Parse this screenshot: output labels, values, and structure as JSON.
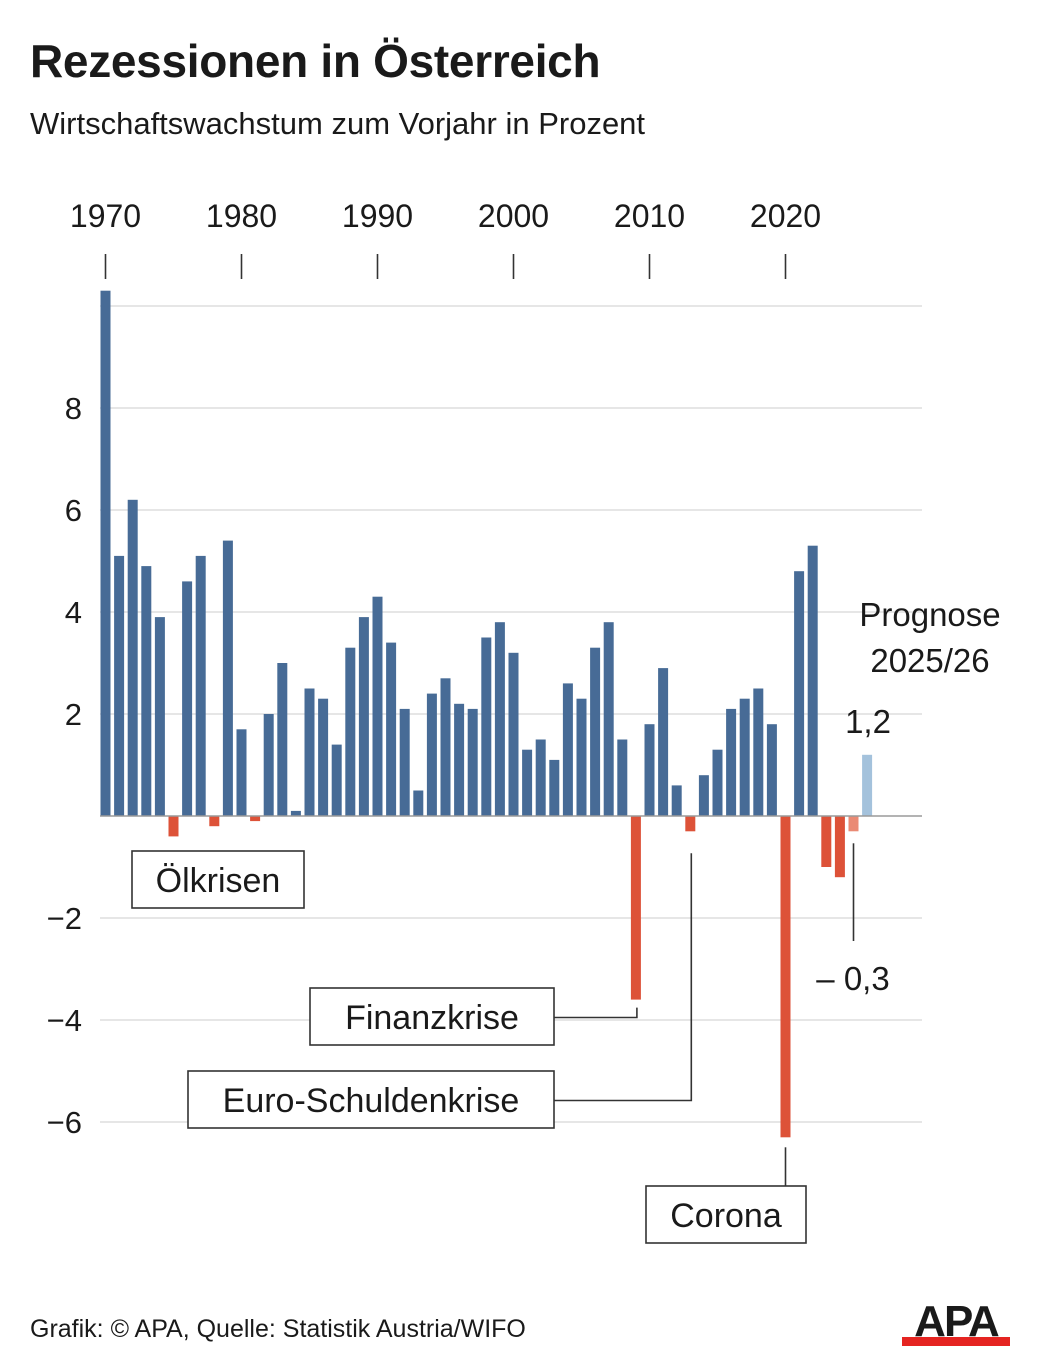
{
  "header": {
    "title": "Rezessionen in Österreich",
    "subtitle": "Wirtschaftswachstum zum Vorjahr in Prozent"
  },
  "chart_data": {
    "type": "bar",
    "title": "Rezessionen in Österreich",
    "subtitle": "Wirtschaftswachstum zum Vorjahr in Prozent",
    "ylim": [
      -7,
      10
    ],
    "grid": true,
    "x_tick_labels": [
      "1970",
      "1980",
      "1990",
      "2000",
      "2010",
      "2020"
    ],
    "x_ticks": [
      1970,
      1980,
      1990,
      2000,
      2010,
      2020
    ],
    "y_tick_labels": [
      "8",
      "6",
      "4",
      "2",
      "−2",
      "−4",
      "−6"
    ],
    "y_ticks": [
      8,
      6,
      4,
      2,
      -2,
      -4,
      -6
    ],
    "x": [
      1970,
      1971,
      1972,
      1973,
      1974,
      1975,
      1976,
      1977,
      1978,
      1979,
      1980,
      1981,
      1982,
      1983,
      1984,
      1985,
      1986,
      1987,
      1988,
      1989,
      1990,
      1991,
      1992,
      1993,
      1994,
      1995,
      1996,
      1997,
      1998,
      1999,
      2000,
      2001,
      2002,
      2003,
      2004,
      2005,
      2006,
      2007,
      2008,
      2009,
      2010,
      2011,
      2012,
      2013,
      2014,
      2015,
      2016,
      2017,
      2018,
      2019,
      2020,
      2021,
      2022,
      2023,
      2024,
      2025,
      2026
    ],
    "values": [
      10.3,
      5.1,
      6.2,
      4.9,
      3.9,
      -0.4,
      4.6,
      5.1,
      -0.2,
      5.4,
      1.7,
      -0.1,
      2.0,
      3.0,
      0.1,
      2.5,
      2.3,
      1.4,
      3.3,
      3.9,
      4.3,
      3.4,
      2.1,
      0.5,
      2.4,
      2.7,
      2.2,
      2.1,
      3.5,
      3.8,
      3.2,
      1.3,
      1.5,
      1.1,
      2.6,
      2.3,
      3.3,
      3.8,
      1.5,
      -3.6,
      1.8,
      2.9,
      0.6,
      -0.3,
      0.8,
      1.3,
      2.1,
      2.3,
      2.5,
      1.8,
      -6.3,
      4.8,
      5.3,
      -1.0,
      -1.2,
      -0.3,
      1.2
    ],
    "forecast_years": [
      2025,
      2026
    ],
    "colors": {
      "positive": "#476b96",
      "negative": "#dd5238",
      "forecast_positive": "#a4c2dc",
      "forecast_negative": "#ea8a74",
      "grid": "#dedede",
      "axis": "#9a9a9a"
    },
    "annotations": [
      {
        "label": "Ölkrisen",
        "target_year": 1975
      },
      {
        "label": "Finanzkrise",
        "target_year": 2009
      },
      {
        "label": "Euro-Schuldenkrise",
        "target_year": 2013
      },
      {
        "label": "Corona",
        "target_year": 2020
      }
    ],
    "forecast_label_line1": "Prognose",
    "forecast_label_line2": "2025/26",
    "forecast_value_labels": [
      {
        "text": "1,2",
        "year": 2026
      },
      {
        "text": "– 0,3",
        "year": 2025
      }
    ]
  },
  "footer": {
    "source": "Grafik: © APA, Quelle: Statistik Austria/WIFO",
    "logo_text": "APA",
    "logo_color": "#e52421"
  }
}
